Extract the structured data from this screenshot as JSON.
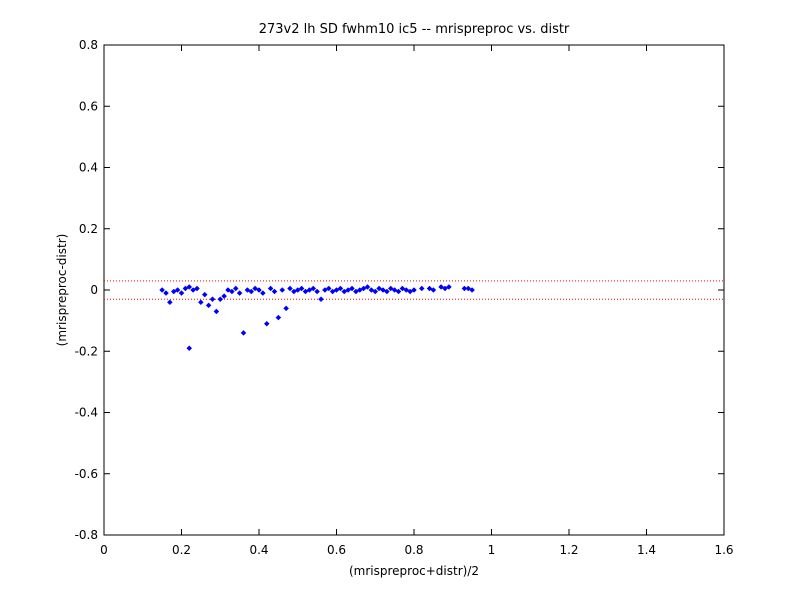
{
  "chart_data": {
    "type": "scatter",
    "title": "273v2 lh SD fwhm10 ic5 -- mrispreproc vs. distr",
    "xlabel": "(mrispreproc+distr)/2",
    "ylabel": "(mrispreproc-distr)",
    "xlim": [
      0,
      1.6
    ],
    "ylim": [
      -0.8,
      0.8
    ],
    "xticks": [
      0,
      0.2,
      0.4,
      0.6,
      0.8,
      1,
      1.2,
      1.4,
      1.6
    ],
    "xtick_labels": [
      "0",
      "0.2",
      "0.4",
      "0.6",
      "0.8",
      "1",
      "1.2",
      "1.4",
      "1.6"
    ],
    "yticks": [
      -0.8,
      -0.6,
      -0.4,
      -0.2,
      0,
      0.2,
      0.4,
      0.6,
      0.8
    ],
    "ytick_labels": [
      "-0.8",
      "-0.6",
      "-0.4",
      "-0.2",
      "0",
      "0.2",
      "0.4",
      "0.6",
      "0.8"
    ],
    "grid": false,
    "marker_color": "#0000ff",
    "reference_line_color": "#ff0000",
    "reference_lines_y": [
      0.03,
      -0.03
    ],
    "points": [
      [
        0.15,
        0.0
      ],
      [
        0.16,
        -0.01
      ],
      [
        0.17,
        -0.04
      ],
      [
        0.18,
        -0.005
      ],
      [
        0.19,
        0.0
      ],
      [
        0.2,
        -0.01
      ],
      [
        0.21,
        0.005
      ],
      [
        0.22,
        0.01
      ],
      [
        0.22,
        -0.19
      ],
      [
        0.23,
        0.0
      ],
      [
        0.24,
        0.005
      ],
      [
        0.25,
        -0.04
      ],
      [
        0.26,
        -0.015
      ],
      [
        0.27,
        -0.05
      ],
      [
        0.28,
        -0.03
      ],
      [
        0.29,
        -0.07
      ],
      [
        0.3,
        -0.03
      ],
      [
        0.31,
        -0.02
      ],
      [
        0.32,
        0.0
      ],
      [
        0.33,
        -0.005
      ],
      [
        0.34,
        0.005
      ],
      [
        0.35,
        -0.01
      ],
      [
        0.36,
        -0.14
      ],
      [
        0.37,
        0.0
      ],
      [
        0.38,
        -0.005
      ],
      [
        0.39,
        0.005
      ],
      [
        0.4,
        0.0
      ],
      [
        0.41,
        -0.01
      ],
      [
        0.42,
        -0.11
      ],
      [
        0.43,
        0.005
      ],
      [
        0.44,
        -0.005
      ],
      [
        0.45,
        -0.09
      ],
      [
        0.46,
        0.0
      ],
      [
        0.47,
        -0.06
      ],
      [
        0.48,
        0.005
      ],
      [
        0.49,
        -0.005
      ],
      [
        0.5,
        0.0
      ],
      [
        0.51,
        0.005
      ],
      [
        0.52,
        -0.005
      ],
      [
        0.53,
        0.0
      ],
      [
        0.54,
        0.005
      ],
      [
        0.55,
        -0.005
      ],
      [
        0.56,
        -0.03
      ],
      [
        0.57,
        0.0
      ],
      [
        0.58,
        0.005
      ],
      [
        0.59,
        -0.005
      ],
      [
        0.6,
        0.0
      ],
      [
        0.61,
        0.005
      ],
      [
        0.62,
        -0.005
      ],
      [
        0.63,
        0.0
      ],
      [
        0.64,
        0.005
      ],
      [
        0.65,
        -0.005
      ],
      [
        0.66,
        0.0
      ],
      [
        0.67,
        0.005
      ],
      [
        0.68,
        0.01
      ],
      [
        0.69,
        0.0
      ],
      [
        0.7,
        -0.005
      ],
      [
        0.71,
        0.005
      ],
      [
        0.72,
        0.0
      ],
      [
        0.73,
        -0.005
      ],
      [
        0.74,
        0.005
      ],
      [
        0.75,
        0.0
      ],
      [
        0.76,
        -0.005
      ],
      [
        0.77,
        0.005
      ],
      [
        0.78,
        0.0
      ],
      [
        0.79,
        -0.005
      ],
      [
        0.8,
        0.0
      ],
      [
        0.82,
        0.005
      ],
      [
        0.84,
        0.005
      ],
      [
        0.85,
        0.0
      ],
      [
        0.87,
        0.01
      ],
      [
        0.88,
        0.005
      ],
      [
        0.89,
        0.01
      ],
      [
        0.93,
        0.005
      ],
      [
        0.94,
        0.005
      ],
      [
        0.95,
        0.0
      ]
    ]
  }
}
